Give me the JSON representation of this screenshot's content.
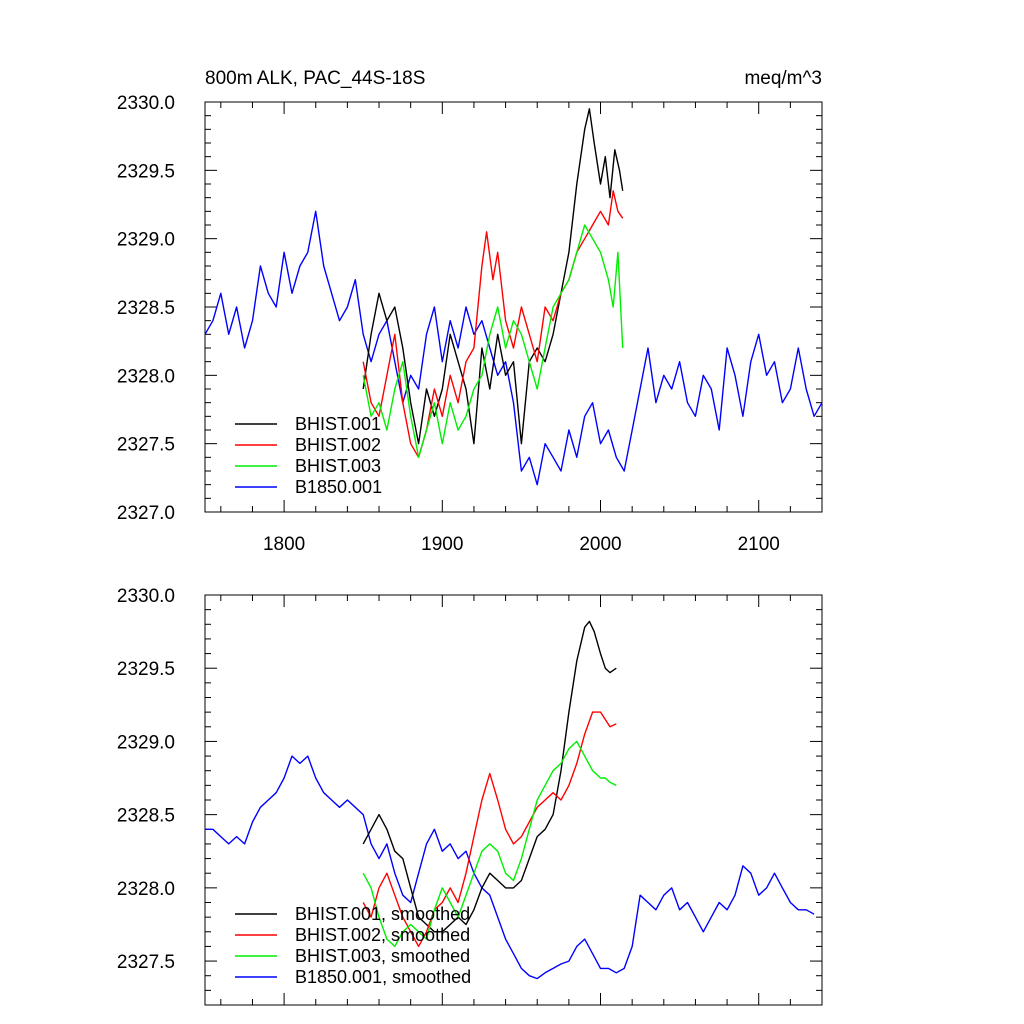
{
  "chart_data": [
    {
      "type": "line",
      "title": "800m ALK, PAC_44S-18S",
      "units": "meq/m^3",
      "xlim": [
        1750,
        2140
      ],
      "ylim": [
        2327.0,
        2330.0
      ],
      "xticks": [
        1800,
        1900,
        2000,
        2100
      ],
      "xtick_labels": [
        "1800",
        "1900",
        "2000",
        "2100"
      ],
      "yticks": [
        2327.0,
        2327.5,
        2328.0,
        2328.5,
        2329.0,
        2329.5,
        2330.0
      ],
      "ytick_labels": [
        "2327.0",
        "2327.5",
        "2328.0",
        "2328.5",
        "2329.0",
        "2329.5",
        "2330.0"
      ],
      "grid": false,
      "legend_position": "bottom-left",
      "series": [
        {
          "name": "BHIST.001",
          "color": "#000000",
          "x": [
            1850,
            1855,
            1860,
            1865,
            1870,
            1875,
            1880,
            1885,
            1890,
            1895,
            1900,
            1905,
            1910,
            1915,
            1920,
            1925,
            1930,
            1935,
            1940,
            1945,
            1950,
            1955,
            1960,
            1965,
            1970,
            1975,
            1980,
            1985,
            1990,
            1993,
            1996,
            2000,
            2003,
            2006,
            2009,
            2012,
            2014
          ],
          "values": [
            2327.9,
            2328.3,
            2328.6,
            2328.4,
            2328.5,
            2328.2,
            2327.8,
            2327.5,
            2327.9,
            2327.7,
            2327.9,
            2328.3,
            2328.1,
            2327.9,
            2327.5,
            2328.2,
            2327.9,
            2328.3,
            2328.0,
            2328.1,
            2327.5,
            2328.1,
            2328.2,
            2328.1,
            2328.3,
            2328.6,
            2328.9,
            2329.4,
            2329.8,
            2329.95,
            2329.7,
            2329.4,
            2329.6,
            2329.3,
            2329.65,
            2329.5,
            2329.35
          ]
        },
        {
          "name": "BHIST.002",
          "color": "#ff0000",
          "x": [
            1850,
            1855,
            1860,
            1865,
            1870,
            1875,
            1880,
            1885,
            1890,
            1895,
            1900,
            1905,
            1910,
            1915,
            1920,
            1925,
            1928,
            1932,
            1935,
            1940,
            1945,
            1950,
            1955,
            1960,
            1965,
            1970,
            1975,
            1980,
            1985,
            1990,
            1995,
            2000,
            2005,
            2008,
            2011,
            2014
          ],
          "values": [
            2328.1,
            2327.8,
            2327.7,
            2328.0,
            2328.3,
            2327.8,
            2327.5,
            2327.4,
            2327.6,
            2327.9,
            2327.7,
            2328.0,
            2327.8,
            2328.1,
            2328.2,
            2328.8,
            2329.05,
            2328.7,
            2328.9,
            2328.4,
            2328.2,
            2328.5,
            2328.3,
            2328.1,
            2328.5,
            2328.4,
            2328.6,
            2328.7,
            2328.9,
            2329.0,
            2329.1,
            2329.2,
            2329.1,
            2329.35,
            2329.2,
            2329.15
          ]
        },
        {
          "name": "BHIST.003",
          "color": "#00ee00",
          "x": [
            1850,
            1855,
            1860,
            1865,
            1870,
            1875,
            1880,
            1885,
            1890,
            1895,
            1900,
            1905,
            1910,
            1915,
            1920,
            1925,
            1930,
            1935,
            1940,
            1945,
            1950,
            1955,
            1960,
            1965,
            1970,
            1975,
            1980,
            1985,
            1990,
            1995,
            2000,
            2005,
            2008,
            2011,
            2014
          ],
          "values": [
            2328.0,
            2327.7,
            2327.8,
            2327.6,
            2327.9,
            2328.1,
            2327.7,
            2327.4,
            2327.6,
            2327.8,
            2327.5,
            2327.8,
            2327.6,
            2327.7,
            2327.9,
            2328.0,
            2328.3,
            2328.5,
            2328.2,
            2328.4,
            2328.3,
            2328.1,
            2327.9,
            2328.2,
            2328.5,
            2328.6,
            2328.7,
            2328.9,
            2329.1,
            2329.0,
            2328.9,
            2328.7,
            2328.5,
            2328.9,
            2328.2
          ]
        },
        {
          "name": "B1850.001",
          "color": "#0000ff",
          "x": [
            1750,
            1755,
            1760,
            1765,
            1770,
            1775,
            1780,
            1785,
            1790,
            1795,
            1800,
            1805,
            1810,
            1815,
            1820,
            1825,
            1830,
            1835,
            1840,
            1845,
            1850,
            1855,
            1860,
            1865,
            1870,
            1875,
            1880,
            1885,
            1890,
            1895,
            1900,
            1905,
            1910,
            1915,
            1920,
            1925,
            1930,
            1935,
            1940,
            1945,
            1950,
            1955,
            1960,
            1965,
            1970,
            1975,
            1980,
            1985,
            1990,
            1995,
            2000,
            2005,
            2010,
            2015,
            2020,
            2025,
            2030,
            2035,
            2040,
            2045,
            2050,
            2055,
            2060,
            2065,
            2070,
            2075,
            2080,
            2085,
            2090,
            2095,
            2100,
            2105,
            2110,
            2115,
            2120,
            2125,
            2130,
            2135,
            2140
          ],
          "values": [
            2328.3,
            2328.4,
            2328.6,
            2328.3,
            2328.5,
            2328.2,
            2328.4,
            2328.8,
            2328.6,
            2328.5,
            2328.9,
            2328.6,
            2328.8,
            2328.9,
            2329.2,
            2328.8,
            2328.6,
            2328.4,
            2328.5,
            2328.7,
            2328.3,
            2328.1,
            2328.3,
            2328.4,
            2328.1,
            2327.8,
            2328.0,
            2327.9,
            2328.3,
            2328.5,
            2328.1,
            2328.4,
            2328.2,
            2328.5,
            2328.3,
            2328.4,
            2328.2,
            2328.0,
            2328.1,
            2327.8,
            2327.3,
            2327.4,
            2327.2,
            2327.5,
            2327.4,
            2327.3,
            2327.6,
            2327.4,
            2327.7,
            2327.8,
            2327.5,
            2327.6,
            2327.4,
            2327.3,
            2327.6,
            2327.9,
            2328.2,
            2327.8,
            2328.0,
            2327.9,
            2328.1,
            2327.8,
            2327.7,
            2328.0,
            2327.9,
            2327.6,
            2328.2,
            2328.0,
            2327.7,
            2328.1,
            2328.3,
            2328.0,
            2328.1,
            2327.8,
            2327.9,
            2328.2,
            2327.9,
            2327.7,
            2327.8
          ]
        }
      ]
    },
    {
      "type": "line",
      "title": "",
      "xlim": [
        1750,
        2140
      ],
      "ylim": [
        2327.2,
        2330.0
      ],
      "xticks": [
        1800,
        1900,
        2000,
        2100
      ],
      "yticks": [
        2327.5,
        2328.0,
        2328.5,
        2329.0,
        2329.5,
        2330.0
      ],
      "ytick_labels": [
        "2327.5",
        "2328.0",
        "2328.5",
        "2329.0",
        "2329.5",
        "2330.0"
      ],
      "grid": false,
      "legend_position": "bottom-left",
      "series": [
        {
          "name": "BHIST.001, smoothed",
          "color": "#000000",
          "x": [
            1850,
            1855,
            1860,
            1865,
            1870,
            1875,
            1880,
            1885,
            1890,
            1895,
            1900,
            1905,
            1910,
            1915,
            1920,
            1925,
            1930,
            1935,
            1940,
            1945,
            1950,
            1955,
            1960,
            1965,
            1970,
            1975,
            1980,
            1985,
            1990,
            1993,
            1996,
            2000,
            2003,
            2006,
            2010
          ],
          "values": [
            2328.3,
            2328.4,
            2328.5,
            2328.4,
            2328.25,
            2328.2,
            2328.0,
            2327.8,
            2327.75,
            2327.7,
            2327.7,
            2327.75,
            2327.8,
            2327.75,
            2327.85,
            2328.0,
            2328.1,
            2328.05,
            2328.0,
            2328.0,
            2328.05,
            2328.2,
            2328.35,
            2328.4,
            2328.5,
            2328.8,
            2329.2,
            2329.55,
            2329.78,
            2329.82,
            2329.75,
            2329.6,
            2329.5,
            2329.47,
            2329.5
          ]
        },
        {
          "name": "BHIST.002, smoothed",
          "color": "#ff0000",
          "x": [
            1850,
            1855,
            1860,
            1865,
            1870,
            1875,
            1880,
            1885,
            1890,
            1895,
            1900,
            1905,
            1910,
            1915,
            1920,
            1925,
            1930,
            1935,
            1940,
            1945,
            1950,
            1955,
            1960,
            1965,
            1970,
            1975,
            1980,
            1985,
            1990,
            1995,
            2000,
            2003,
            2006,
            2010
          ],
          "values": [
            2327.9,
            2327.8,
            2328.0,
            2328.1,
            2327.95,
            2327.8,
            2327.7,
            2327.6,
            2327.7,
            2327.85,
            2327.9,
            2328.0,
            2327.9,
            2328.1,
            2328.35,
            2328.6,
            2328.78,
            2328.6,
            2328.4,
            2328.3,
            2328.35,
            2328.45,
            2328.55,
            2328.6,
            2328.65,
            2328.6,
            2328.7,
            2328.85,
            2329.05,
            2329.2,
            2329.2,
            2329.15,
            2329.1,
            2329.12
          ]
        },
        {
          "name": "BHIST.003, smoothed",
          "color": "#00ee00",
          "x": [
            1850,
            1855,
            1860,
            1865,
            1870,
            1875,
            1880,
            1885,
            1890,
            1895,
            1900,
            1905,
            1910,
            1915,
            1920,
            1925,
            1930,
            1935,
            1940,
            1945,
            1950,
            1955,
            1960,
            1965,
            1970,
            1975,
            1980,
            1985,
            1990,
            1995,
            2000,
            2003,
            2006,
            2010
          ],
          "values": [
            2328.1,
            2328.0,
            2327.8,
            2327.65,
            2327.6,
            2327.7,
            2327.75,
            2327.7,
            2327.65,
            2327.85,
            2328.0,
            2327.9,
            2327.8,
            2327.95,
            2328.1,
            2328.25,
            2328.3,
            2328.25,
            2328.1,
            2328.05,
            2328.2,
            2328.4,
            2328.6,
            2328.7,
            2328.8,
            2328.85,
            2328.95,
            2329.0,
            2328.9,
            2328.8,
            2328.75,
            2328.75,
            2328.72,
            2328.7
          ]
        },
        {
          "name": "B1850.001, smoothed",
          "color": "#0000ff",
          "x": [
            1750,
            1755,
            1760,
            1765,
            1770,
            1775,
            1780,
            1785,
            1790,
            1795,
            1800,
            1805,
            1810,
            1815,
            1820,
            1825,
            1830,
            1835,
            1840,
            1845,
            1850,
            1855,
            1860,
            1865,
            1870,
            1875,
            1880,
            1885,
            1890,
            1895,
            1900,
            1905,
            1910,
            1915,
            1920,
            1925,
            1930,
            1935,
            1940,
            1945,
            1950,
            1955,
            1960,
            1965,
            1970,
            1975,
            1980,
            1985,
            1990,
            1995,
            2000,
            2005,
            2010,
            2015,
            2020,
            2025,
            2030,
            2035,
            2040,
            2045,
            2050,
            2055,
            2060,
            2065,
            2070,
            2075,
            2080,
            2085,
            2090,
            2095,
            2100,
            2105,
            2110,
            2115,
            2120,
            2125,
            2130,
            2135
          ],
          "values": [
            2328.4,
            2328.4,
            2328.35,
            2328.3,
            2328.35,
            2328.3,
            2328.45,
            2328.55,
            2328.6,
            2328.65,
            2328.75,
            2328.9,
            2328.85,
            2328.9,
            2328.75,
            2328.65,
            2328.6,
            2328.55,
            2328.6,
            2328.55,
            2328.5,
            2328.3,
            2328.2,
            2328.3,
            2328.1,
            2327.95,
            2327.9,
            2328.1,
            2328.3,
            2328.4,
            2328.25,
            2328.3,
            2328.2,
            2328.25,
            2328.1,
            2328.0,
            2327.95,
            2327.8,
            2327.65,
            2327.55,
            2327.45,
            2327.4,
            2327.38,
            2327.42,
            2327.45,
            2327.48,
            2327.5,
            2327.6,
            2327.65,
            2327.55,
            2327.45,
            2327.45,
            2327.42,
            2327.45,
            2327.6,
            2327.95,
            2327.9,
            2327.85,
            2327.95,
            2328.0,
            2327.85,
            2327.9,
            2327.8,
            2327.7,
            2327.8,
            2327.9,
            2327.85,
            2327.95,
            2328.15,
            2328.1,
            2327.95,
            2328.0,
            2328.1,
            2328.0,
            2327.9,
            2327.85,
            2327.85,
            2327.82
          ]
        }
      ]
    }
  ]
}
